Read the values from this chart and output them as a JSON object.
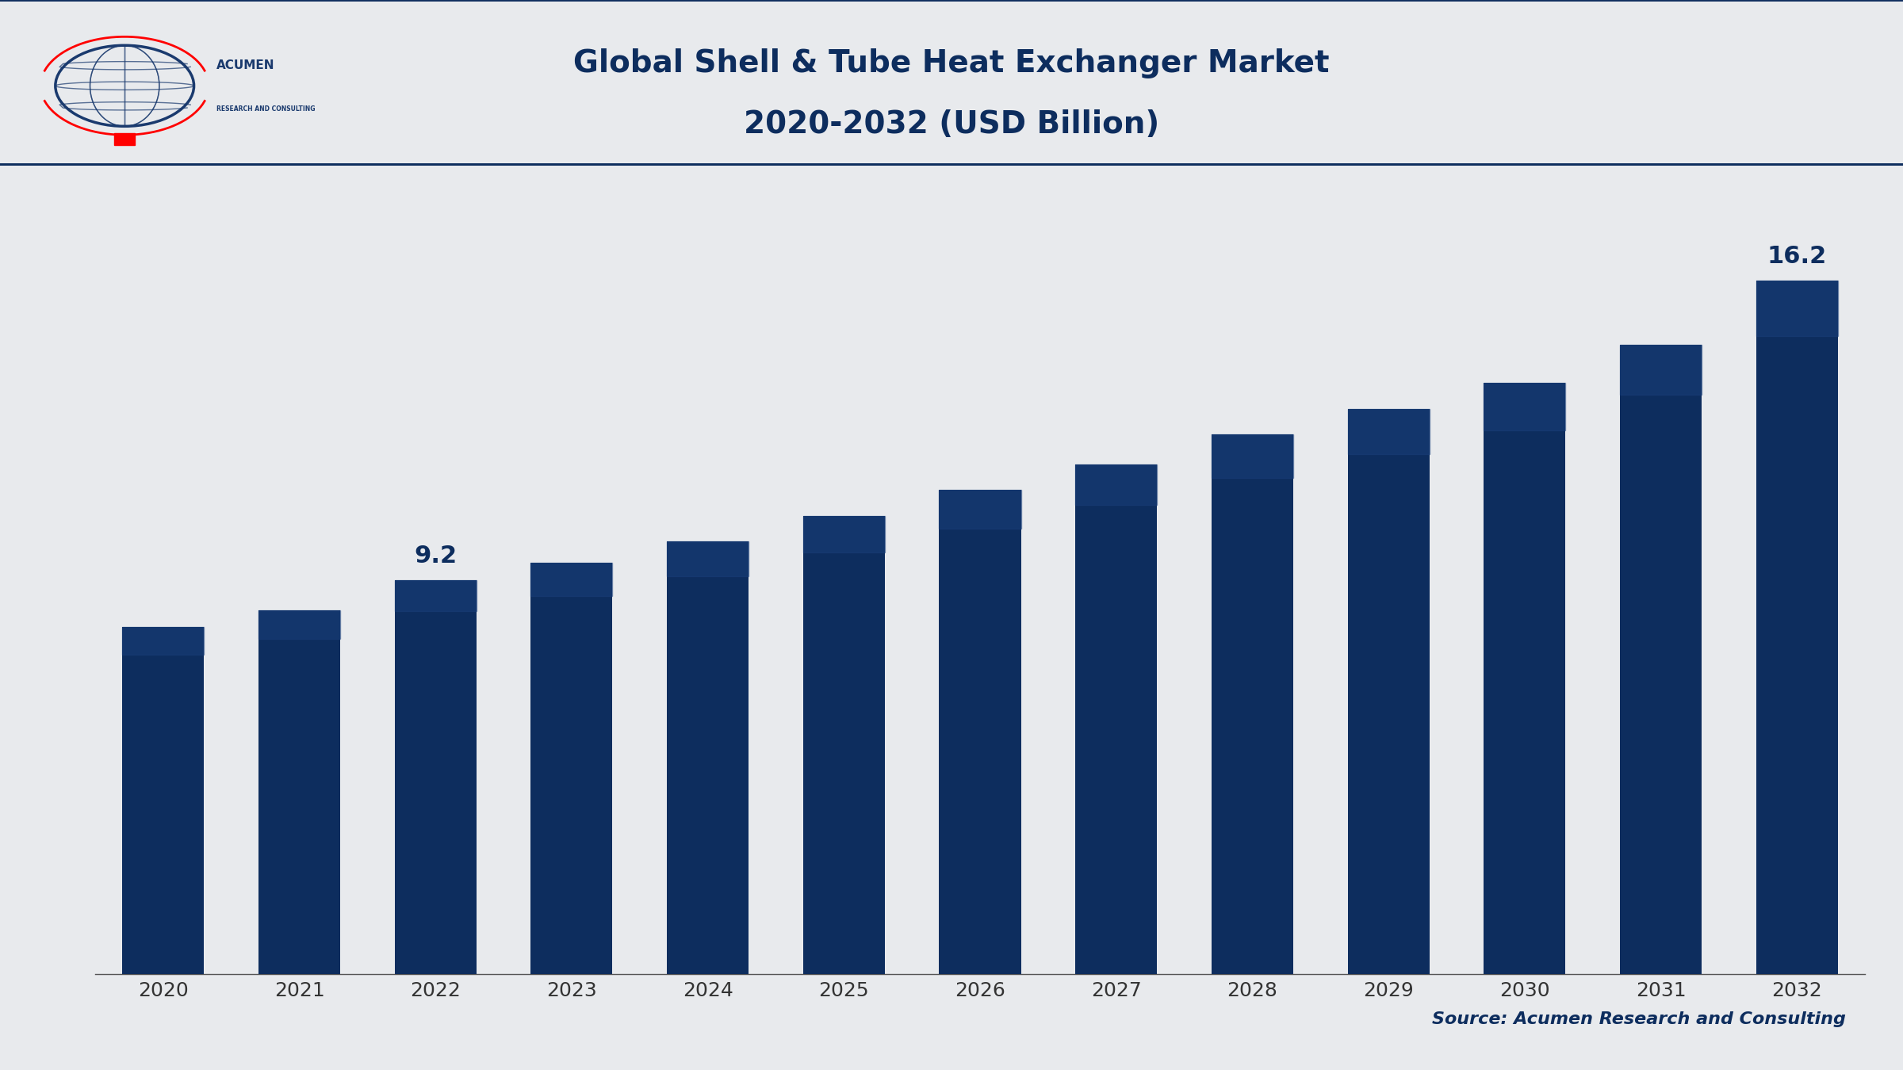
{
  "title_line1": "Global Shell & Tube Heat Exchanger Market",
  "title_line2": "2020-2032 (USD Billion)",
  "years": [
    2020,
    2021,
    2022,
    2023,
    2024,
    2025,
    2026,
    2027,
    2028,
    2029,
    2030,
    2031,
    2032
  ],
  "values": [
    8.1,
    8.5,
    9.2,
    9.6,
    10.1,
    10.7,
    11.3,
    11.9,
    12.6,
    13.2,
    13.8,
    14.7,
    16.2
  ],
  "bar_color": "#0d2d5e",
  "bar_color_gradient_top": "#1a3f7a",
  "background_color": "#e8eaed",
  "header_bg": "#f0f2f5",
  "title_color": "#0d2d5e",
  "label_2022": "9.2",
  "label_2032": "16.2",
  "source_text": "Source: Acumen Research and Consulting",
  "source_color": "#0d2d5e",
  "xlabel_color": "#333333",
  "separator_color": "#0d2d5e",
  "ylim": [
    0,
    18
  ],
  "annotation_fontsize": 22,
  "xlabel_fontsize": 18,
  "title_fontsize": 28,
  "source_fontsize": 16
}
